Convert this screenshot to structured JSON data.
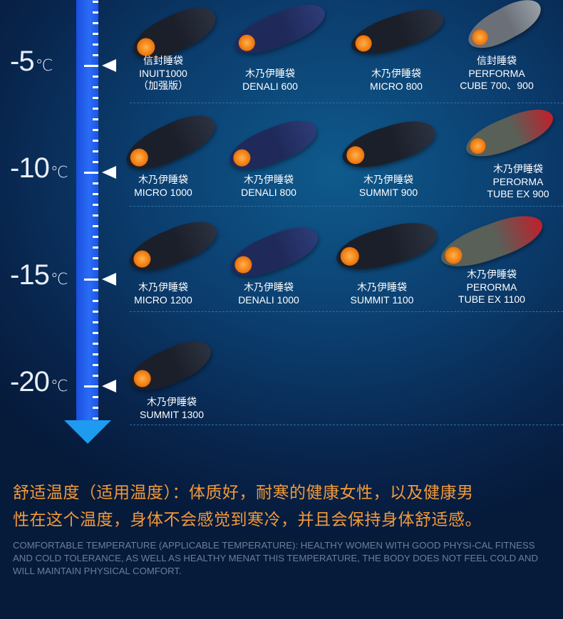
{
  "scale": {
    "labels": [
      {
        "value": "-5",
        "unit": "℃"
      },
      {
        "value": "-10",
        "unit": "℃"
      },
      {
        "value": "-15",
        "unit": "℃"
      },
      {
        "value": "-20",
        "unit": "℃"
      }
    ]
  },
  "rows": [
    {
      "temperature": "-5℃",
      "products": [
        {
          "lines": [
            "信封睡袋",
            "INUIT1000",
            "（加强版）"
          ],
          "color": "black"
        },
        {
          "lines": [
            "木乃伊睡袋",
            "DENALI  600"
          ],
          "color": "navy"
        },
        {
          "lines": [
            "木乃伊睡袋",
            "MICRO 800"
          ],
          "color": "black"
        },
        {
          "lines": [
            "信封睡袋",
            "PERFORMA",
            "CUBE 700、900"
          ],
          "color": "grey"
        }
      ]
    },
    {
      "temperature": "-10℃",
      "products": [
        {
          "lines": [
            "木乃伊睡袋",
            "MICRO 1000"
          ],
          "color": "black"
        },
        {
          "lines": [
            "木乃伊睡袋",
            "DENALI 800"
          ],
          "color": "navy"
        },
        {
          "lines": [
            "木乃伊睡袋",
            "SUMMIT 900"
          ],
          "color": "black"
        },
        {
          "lines": [
            "木乃伊睡袋",
            "PERORMA",
            "TUBE EX  900"
          ],
          "color": "red-grey"
        }
      ]
    },
    {
      "temperature": "-15℃",
      "products": [
        {
          "lines": [
            "木乃伊睡袋",
            "MICRO 1200"
          ],
          "color": "black"
        },
        {
          "lines": [
            "木乃伊睡袋",
            "DENALI 1000"
          ],
          "color": "navy"
        },
        {
          "lines": [
            "木乃伊睡袋",
            "SUMMIT 1100"
          ],
          "color": "black"
        },
        {
          "lines": [
            "木乃伊睡袋",
            "PERORMA",
            "TUBE EX  1100"
          ],
          "color": "red-grey"
        }
      ]
    },
    {
      "temperature": "-20℃",
      "products": [
        {
          "lines": [
            "木乃伊睡袋",
            "SUMMIT 1300"
          ],
          "color": "black"
        }
      ]
    }
  ],
  "description": {
    "cn_line1": "舒适温度（适用温度）：体质好，耐寒的健康女性，以及健康男",
    "cn_line2": "性在这个温度，身体不会感觉到寒冷，并且会保持身体舒适感。",
    "en": "COMFORTABLE TEMPERATURE (APPLICABLE TEMPERATURE): HEALTHY WOMEN WITH GOOD PHYSI-CAL FITNESS AND COLD TOLERANCE, AS WELL AS HEALTHY MENAT THIS TEMPERATURE, THE BODY DOES NOT FEEL COLD AND WILL MAINTAIN PHYSICAL COMFORT."
  },
  "colors": {
    "accent_orange": "#f29a3a",
    "thermometer": "#2a6cf5",
    "arrow": "#1e9bf0"
  }
}
